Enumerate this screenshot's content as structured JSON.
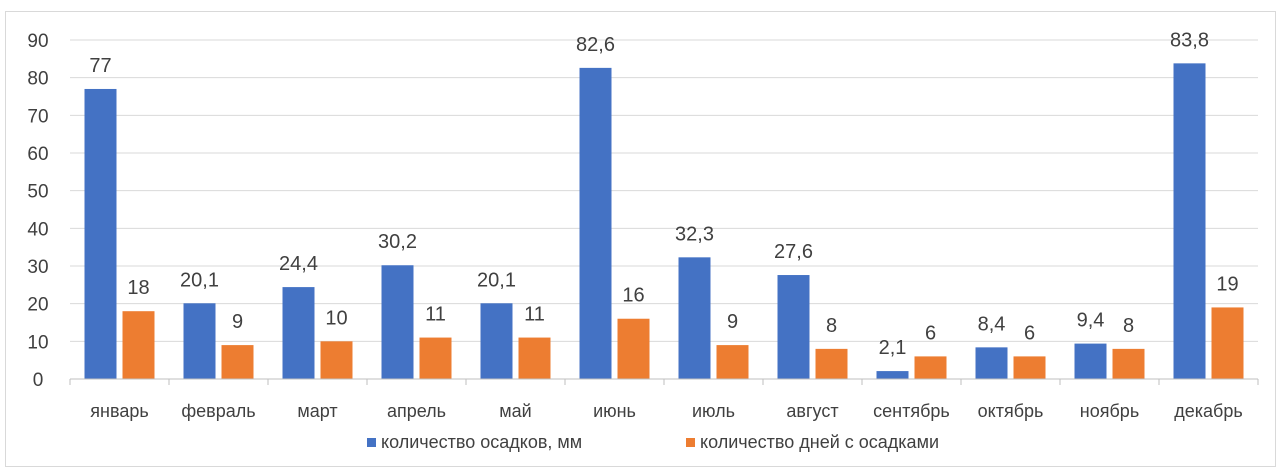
{
  "chart_data": {
    "type": "bar",
    "title": "",
    "xlabel": "",
    "ylabel": "",
    "ylim": [
      0,
      90
    ],
    "yticks": [
      "0",
      "10",
      "20",
      "30",
      "40",
      "50",
      "60",
      "70",
      "80",
      "90"
    ],
    "grid": true,
    "legend_position": "bottom",
    "categories": [
      "январь",
      "февраль",
      "март",
      "апрель",
      "май",
      "июнь",
      "июль",
      "август",
      "сентябрь",
      "октябрь",
      "ноябрь",
      "декабрь"
    ],
    "series": [
      {
        "name": "количество осадков, мм",
        "color": "#4472C4",
        "values": [
          77,
          20.1,
          24.4,
          30.2,
          20.1,
          82.6,
          32.3,
          27.6,
          2.1,
          8.4,
          9.4,
          83.8
        ],
        "labels": [
          "77",
          "20,1",
          "24,4",
          "30,2",
          "20,1",
          "82,6",
          "32,3",
          "27,6",
          "2,1",
          "8,4",
          "9,4",
          "83,8"
        ]
      },
      {
        "name": "количество дней с осадками",
        "color": "#ED7D31",
        "values": [
          18,
          9,
          10,
          11,
          11,
          16,
          9,
          8,
          6,
          6,
          8,
          19
        ],
        "labels": [
          "18",
          "9",
          "10",
          "11",
          "11",
          "16",
          "9",
          "8",
          "6",
          "6",
          "8",
          "19"
        ]
      }
    ]
  }
}
